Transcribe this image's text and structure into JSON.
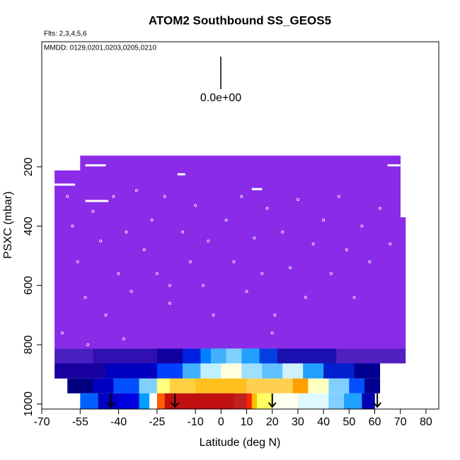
{
  "chart_data": {
    "type": "curtain",
    "title": "ATOM2 Southbound SS_GEOS5",
    "subtitle": "Flts: 2,3,4,5,6",
    "annotation": "MMDD: 0129,0201,0203,0205,0210",
    "legend_label": "0.0e+00",
    "xlabel": "Latitude (deg N)",
    "ylabel": "PSXC (mbar)",
    "xlim": [
      -70,
      85
    ],
    "ylim": [
      1017,
      -222
    ],
    "xticks": [
      -70,
      -55,
      -40,
      -25,
      -10,
      0,
      10,
      20,
      30,
      40,
      50,
      60,
      70,
      80
    ],
    "yticks": [
      200,
      400,
      600,
      800,
      1000
    ],
    "rows": [
      {
        "p": [
          212,
          813
        ],
        "segments": [
          [
            -65,
            -55,
            "#8a2be8"
          ]
        ]
      },
      {
        "p": [
          162,
          813
        ],
        "segments": [
          [
            -55,
            70,
            "#8a2be8"
          ]
        ]
      },
      {
        "p": [
          370,
          813
        ],
        "segments": [
          [
            70,
            72,
            "#8a2be8"
          ]
        ]
      },
      {
        "p": [
          813,
          863
        ],
        "segments": [
          [
            -65,
            -50,
            "#4a1fc0"
          ],
          [
            -50,
            -25,
            "#3010b0"
          ],
          [
            -25,
            -15,
            "#1000a0"
          ],
          [
            -15,
            -8,
            "#0020e0"
          ],
          [
            -8,
            -4,
            "#0080ff"
          ],
          [
            -4,
            2,
            "#40b0ff"
          ],
          [
            2,
            8,
            "#80d0ff"
          ],
          [
            8,
            15,
            "#20a0ff"
          ],
          [
            15,
            22,
            "#0040e0"
          ],
          [
            22,
            45,
            "#1a10b0"
          ],
          [
            45,
            72,
            "#5020c0"
          ]
        ]
      },
      {
        "p": [
          863,
          914
        ],
        "segments": [
          [
            -65,
            -45,
            "#1800a0"
          ],
          [
            -45,
            -25,
            "#0000c0"
          ],
          [
            -25,
            -15,
            "#0040ff"
          ],
          [
            -15,
            -8,
            "#40b0ff"
          ],
          [
            -8,
            0,
            "#c0f0ff"
          ],
          [
            0,
            8,
            "#ffffe0"
          ],
          [
            8,
            16,
            "#a0e0ff"
          ],
          [
            16,
            24,
            "#60c0ff"
          ],
          [
            24,
            32,
            "#d0f0ff"
          ],
          [
            32,
            40,
            "#20a0ff"
          ],
          [
            40,
            52,
            "#0020d0"
          ],
          [
            52,
            62,
            "#000090"
          ]
        ]
      },
      {
        "p": [
          914,
          964
        ],
        "segments": [
          [
            -60,
            -50,
            "#000080"
          ],
          [
            -50,
            -42,
            "#0000c0"
          ],
          [
            -42,
            -32,
            "#0050ff"
          ],
          [
            -32,
            -25,
            "#80d0ff"
          ],
          [
            -25,
            -20,
            "#ffff80"
          ],
          [
            -20,
            -10,
            "#ffd040"
          ],
          [
            -10,
            10,
            "#ffc020"
          ],
          [
            10,
            28,
            "#ffd050"
          ],
          [
            28,
            34,
            "#ffa000"
          ],
          [
            34,
            42,
            "#ffffc0"
          ],
          [
            42,
            50,
            "#80d0ff"
          ],
          [
            50,
            56,
            "#0050ff"
          ],
          [
            56,
            62,
            "#000090"
          ]
        ]
      },
      {
        "p": [
          964,
          1016
        ],
        "segments": [
          [
            -55,
            -48,
            "#0060ff"
          ],
          [
            -48,
            -40,
            "#0000c0"
          ],
          [
            -40,
            -32,
            "#0000e0"
          ],
          [
            -32,
            -28,
            "#00a0ff"
          ],
          [
            -28,
            -25,
            "#ffffff"
          ],
          [
            -25,
            -22,
            "#ff6000"
          ],
          [
            -22,
            5,
            "#c01010"
          ],
          [
            5,
            10,
            "#c02020"
          ],
          [
            10,
            12,
            "#ff2000"
          ],
          [
            12,
            14,
            "#ffc000"
          ],
          [
            14,
            20,
            "#ffff60"
          ],
          [
            20,
            30,
            "#fffff0"
          ],
          [
            30,
            42,
            "#e0f8ff"
          ],
          [
            42,
            48,
            "#80d0ff"
          ],
          [
            48,
            55,
            "#20a0ff"
          ],
          [
            55,
            60,
            "#0000b0"
          ]
        ]
      }
    ],
    "tracks": [
      [
        -65,
        -57,
        260
      ],
      [
        -53,
        -45,
        195
      ],
      [
        -53,
        -44,
        315
      ],
      [
        -17,
        -14,
        225
      ],
      [
        65,
        70,
        195
      ],
      [
        12,
        16,
        275
      ]
    ],
    "points": [
      [
        -60,
        300
      ],
      [
        -58,
        400
      ],
      [
        -56,
        520
      ],
      [
        -53,
        640
      ],
      [
        -50,
        350
      ],
      [
        -47,
        450
      ],
      [
        -45,
        700
      ],
      [
        -42,
        300
      ],
      [
        -40,
        560
      ],
      [
        -37,
        420
      ],
      [
        -35,
        620
      ],
      [
        -33,
        280
      ],
      [
        -30,
        480
      ],
      [
        -27,
        380
      ],
      [
        -25,
        560
      ],
      [
        -22,
        300
      ],
      [
        -20,
        660
      ],
      [
        -15,
        420
      ],
      [
        -12,
        520
      ],
      [
        -10,
        330
      ],
      [
        -7,
        600
      ],
      [
        -5,
        450
      ],
      [
        -3,
        700
      ],
      [
        2,
        380
      ],
      [
        5,
        520
      ],
      [
        8,
        300
      ],
      [
        10,
        620
      ],
      [
        13,
        440
      ],
      [
        16,
        560
      ],
      [
        18,
        340
      ],
      [
        21,
        700
      ],
      [
        24,
        420
      ],
      [
        27,
        540
      ],
      [
        30,
        310
      ],
      [
        33,
        640
      ],
      [
        36,
        460
      ],
      [
        40,
        380
      ],
      [
        43,
        560
      ],
      [
        46,
        300
      ],
      [
        49,
        480
      ],
      [
        52,
        640
      ],
      [
        55,
        400
      ],
      [
        58,
        520
      ],
      [
        62,
        340
      ],
      [
        66,
        460
      ],
      [
        -62,
        760
      ],
      [
        -52,
        800
      ],
      [
        -38,
        780
      ],
      [
        20,
        760
      ],
      [
        -20,
        600
      ]
    ],
    "markers": [
      -43,
      -18,
      20,
      61
    ]
  }
}
